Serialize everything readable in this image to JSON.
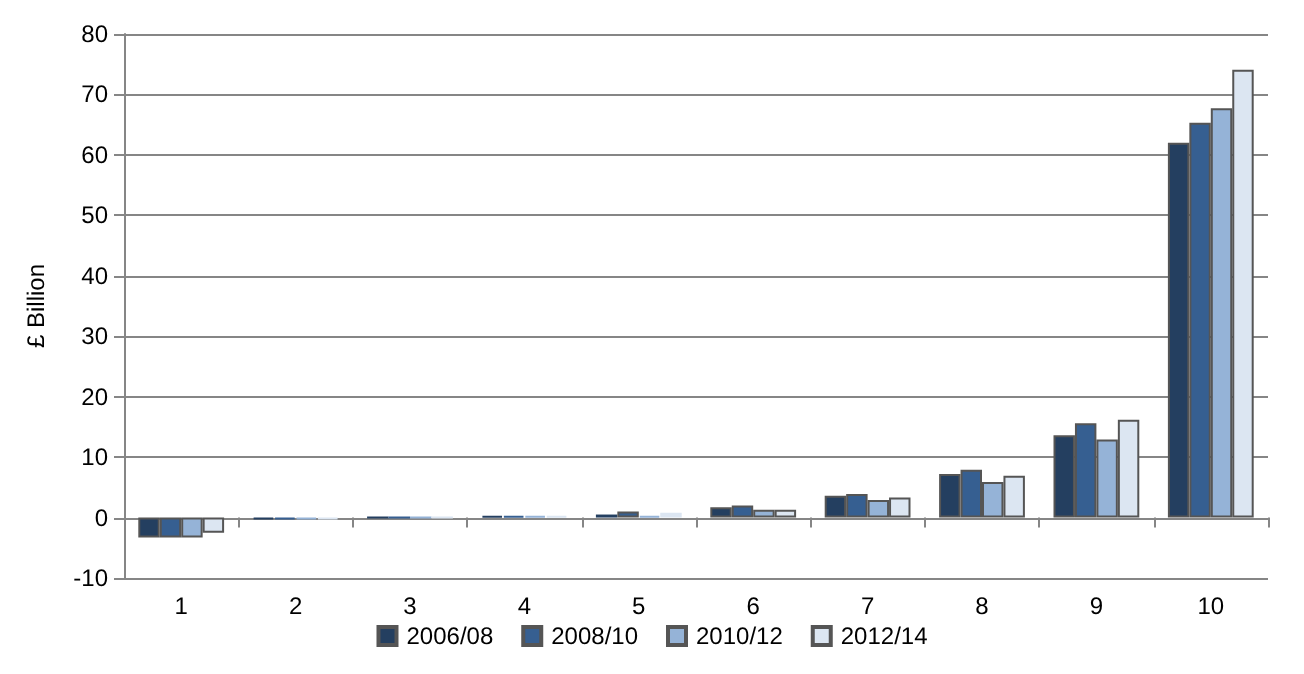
{
  "chart_data": {
    "type": "bar",
    "ylabel": "£ Billion",
    "categories": [
      "1",
      "2",
      "3",
      "4",
      "5",
      "6",
      "7",
      "8",
      "9",
      "10"
    ],
    "series": [
      {
        "name": "2006/08",
        "color": "#243f60",
        "values": [
          -3.3,
          -0.3,
          0,
          0.3,
          0.5,
          1.7,
          3.6,
          7.2,
          13.6,
          62
        ]
      },
      {
        "name": "2008/10",
        "color": "#365f91",
        "values": [
          -3.3,
          -0.3,
          0,
          0.3,
          1,
          2,
          3.9,
          7.9,
          15.6,
          65.3
        ]
      },
      {
        "name": "2010/12",
        "color": "#95b3d7",
        "values": [
          -3.3,
          -0.3,
          0,
          0.3,
          0.3,
          1.3,
          2.9,
          5.9,
          12.9,
          67.7
        ]
      },
      {
        "name": "2012/14",
        "color": "#dce6f2",
        "values": [
          -2.5,
          -0.3,
          0,
          0.3,
          0.8,
          1.3,
          3.3,
          6.9,
          16.2,
          74.1
        ]
      }
    ],
    "ylim": [
      -10,
      80
    ],
    "yticks": [
      -10,
      0,
      10,
      20,
      30,
      40,
      50,
      60,
      70,
      80
    ],
    "grid": "y",
    "legend": "bottom"
  }
}
